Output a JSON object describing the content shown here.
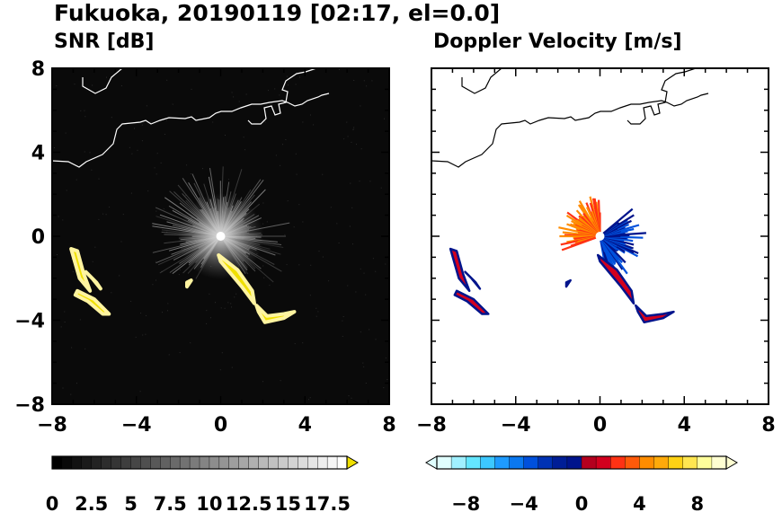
{
  "title": "Fukuoka, 20190119 [02:17, el=0.0]",
  "chart_data": [
    {
      "type": "heatmap",
      "title": "SNR [dB]",
      "xlim": [
        -8,
        8
      ],
      "ylim": [
        -8,
        8
      ],
      "x_ticks": [
        "−8",
        "−4",
        "0",
        "4",
        "8"
      ],
      "y_ticks": [
        "8",
        "4",
        "0",
        "−4",
        "−8"
      ],
      "background": "#0a0a0a",
      "colorbar": {
        "ticks": [
          "0",
          "2.5",
          "5",
          "7.5",
          "10",
          "12.5",
          "15",
          "17.5"
        ],
        "range": [
          0,
          18.75
        ],
        "low_color": "#000000",
        "high_color": "#ffffff",
        "extend_color": "#f0e000"
      }
    },
    {
      "type": "heatmap",
      "title": "Doppler Velocity [m/s]",
      "xlim": [
        -8,
        8
      ],
      "ylim": [
        -8,
        8
      ],
      "x_ticks": [
        "−8",
        "−4",
        "0",
        "4",
        "8"
      ],
      "colorbar": {
        "ticks": [
          "−8",
          "−4",
          "0",
          "4",
          "8"
        ],
        "range": [
          -10,
          10
        ],
        "negative_colors": [
          "#c8ffff",
          "#64e6ff",
          "#1e9bff",
          "#0050dc",
          "#00148c"
        ],
        "positive_colors": [
          "#d2001e",
          "#ff3214",
          "#ff8c00",
          "#ffd214",
          "#ffff9b"
        ]
      }
    }
  ]
}
